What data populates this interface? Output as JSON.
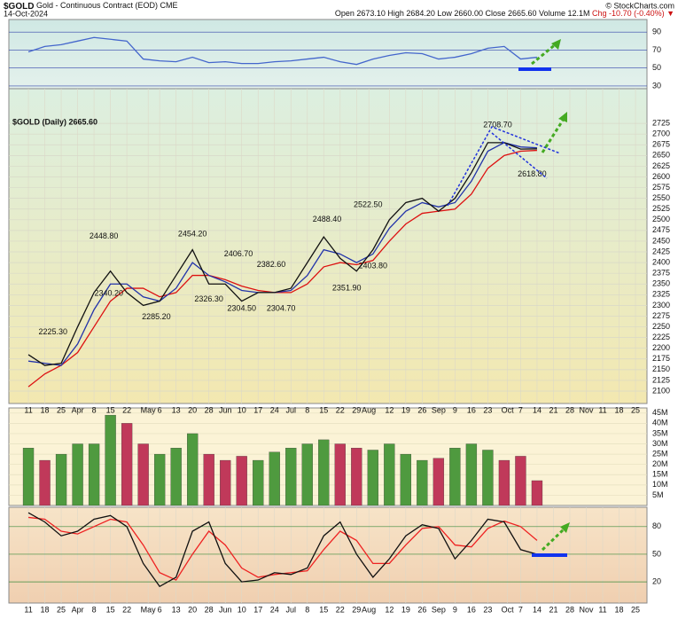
{
  "header": {
    "symbol": "$GOLD",
    "name": "Gold - Continuous Contract (EOD)",
    "exchange": "CME",
    "date": "14-Oct-2024",
    "copyright": "© StockCharts.com",
    "quote": "Open 2673.10 High 2684.20 Low 2660.00 Close 2665.60 Volume 12.1M",
    "change": "Chg -10.70 (-0.40%) ▼"
  },
  "chart_data": [
    {
      "type": "line",
      "x": [
        0,
        1,
        2,
        3,
        4,
        5,
        6,
        7,
        8,
        9,
        10,
        11,
        12,
        13,
        14,
        15,
        16,
        17,
        18,
        19,
        20,
        21,
        22,
        23,
        24,
        25,
        26,
        27,
        28,
        29,
        30,
        31
      ],
      "xlim": [
        -1.19,
        37.7
      ],
      "ylim": [
        27,
        104
      ],
      "yticks": [
        30,
        50,
        70,
        90
      ],
      "grid_color": "#3344aa",
      "series": [
        {
          "color": "#4466cc",
          "values": [
            68,
            74,
            76,
            80,
            84,
            82,
            80,
            60,
            58,
            57,
            62,
            56,
            57,
            55,
            55,
            57,
            58,
            60,
            62,
            57,
            54,
            60,
            64,
            67,
            66,
            60,
            62,
            66,
            72,
            74,
            60,
            62
          ]
        }
      ]
    },
    {
      "type": "line",
      "title": "$GOLD (Daily) 2665.60",
      "x": [
        0,
        1,
        2,
        3,
        4,
        5,
        6,
        7,
        8,
        9,
        10,
        11,
        12,
        13,
        14,
        15,
        16,
        17,
        18,
        19,
        20,
        21,
        22,
        23,
        24,
        25,
        26,
        27,
        28,
        29,
        30,
        31
      ],
      "xlim": [
        -1.19,
        37.7
      ],
      "ylim": [
        2071,
        2806
      ],
      "grid_color": "#d8d8c8",
      "yticks": [
        2100,
        2125,
        2150,
        2175,
        2200,
        2225,
        2250,
        2275,
        2300,
        2325,
        2350,
        2375,
        2400,
        2425,
        2450,
        2475,
        2500,
        2525,
        2550,
        2575,
        2600,
        2625,
        2650,
        2675,
        2700,
        2725
      ],
      "xticks": [
        {
          "value": 0,
          "label": "11"
        },
        {
          "value": 1,
          "label": "18"
        },
        {
          "value": 2,
          "label": "25"
        },
        {
          "value": 3,
          "label": "Apr"
        },
        {
          "value": 4,
          "label": "8"
        },
        {
          "value": 5,
          "label": "15"
        },
        {
          "value": 6,
          "label": "22"
        },
        {
          "value": 7.3,
          "label": "May"
        },
        {
          "value": 8,
          "label": "6"
        },
        {
          "value": 9,
          "label": "13"
        },
        {
          "value": 10,
          "label": "20"
        },
        {
          "value": 11,
          "label": "28"
        },
        {
          "value": 12,
          "label": "Jun"
        },
        {
          "value": 13,
          "label": "10"
        },
        {
          "value": 14,
          "label": "17"
        },
        {
          "value": 15,
          "label": "24"
        },
        {
          "value": 16,
          "label": "Jul"
        },
        {
          "value": 17,
          "label": "8"
        },
        {
          "value": 18,
          "label": "15"
        },
        {
          "value": 19,
          "label": "22"
        },
        {
          "value": 20,
          "label": "29"
        },
        {
          "value": 20.75,
          "label": "Aug"
        },
        {
          "value": 22,
          "label": "12"
        },
        {
          "value": 23,
          "label": "19"
        },
        {
          "value": 24,
          "label": "26"
        },
        {
          "value": 25,
          "label": "Sep"
        },
        {
          "value": 26,
          "label": "9"
        },
        {
          "value": 27,
          "label": "16"
        },
        {
          "value": 28,
          "label": "23"
        },
        {
          "value": 29.2,
          "label": "Oct"
        },
        {
          "value": 30,
          "label": "7"
        },
        {
          "value": 31,
          "label": "14"
        },
        {
          "value": 32,
          "label": "21"
        },
        {
          "value": 33,
          "label": "28"
        },
        {
          "value": 34,
          "label": "Nov"
        },
        {
          "value": 35,
          "label": "11"
        },
        {
          "value": 36,
          "label": "18"
        },
        {
          "value": 37,
          "label": "25"
        }
      ],
      "series": [
        {
          "color": "#dd1111",
          "values": [
            2110,
            2140,
            2160,
            2190,
            2250,
            2310,
            2340,
            2340,
            2320,
            2330,
            2370,
            2370,
            2360,
            2345,
            2335,
            2330,
            2330,
            2350,
            2390,
            2400,
            2395,
            2405,
            2450,
            2490,
            2515,
            2520,
            2525,
            2560,
            2620,
            2650,
            2660,
            2662
          ]
        },
        {
          "color": "#2233aa",
          "values": [
            2170,
            2165,
            2160,
            2210,
            2290,
            2350,
            2350,
            2320,
            2310,
            2340,
            2400,
            2370,
            2355,
            2335,
            2330,
            2330,
            2335,
            2370,
            2430,
            2420,
            2400,
            2420,
            2480,
            2520,
            2540,
            2530,
            2540,
            2590,
            2660,
            2680,
            2670,
            2668
          ]
        },
        {
          "color": "#111111",
          "values": [
            2185,
            2160,
            2165,
            2250,
            2330,
            2380,
            2330,
            2300,
            2310,
            2370,
            2430,
            2350,
            2350,
            2310,
            2330,
            2330,
            2340,
            2400,
            2460,
            2410,
            2380,
            2430,
            2500,
            2540,
            2550,
            2520,
            2550,
            2610,
            2680,
            2680,
            2665,
            2665.6
          ]
        }
      ],
      "annotations": [
        {
          "x": 1.5,
          "value": 2225.3,
          "label": "2225.30"
        },
        {
          "x": 4.6,
          "value": 2448.8,
          "label": "2448.80"
        },
        {
          "x": 4.9,
          "value": 2340.2,
          "label": "2340.20"
        },
        {
          "x": 7.8,
          "value": 2285.2,
          "label": "2285.20"
        },
        {
          "x": 10,
          "value": 2454.2,
          "label": "2454.20"
        },
        {
          "x": 11,
          "value": 2326.3,
          "label": "2326.30"
        },
        {
          "x": 12.8,
          "value": 2406.7,
          "label": "2406.70"
        },
        {
          "x": 13,
          "value": 2304.5,
          "label": "2304.50"
        },
        {
          "x": 14.8,
          "value": 2382.6,
          "label": "2382.60"
        },
        {
          "x": 15.4,
          "value": 2304.7,
          "label": "2304.70"
        },
        {
          "x": 18.2,
          "value": 2488.4,
          "label": "2488.40"
        },
        {
          "x": 19.4,
          "value": 2351.9,
          "label": "2351.90"
        },
        {
          "x": 20.7,
          "value": 2522.5,
          "label": "2522.50"
        },
        {
          "x": 21,
          "value": 2403.8,
          "label": "2403.80"
        },
        {
          "x": 28.6,
          "value": 2708.7,
          "label": "2708.70"
        },
        {
          "x": 30.7,
          "value": 2618.8,
          "label": "2618.80"
        }
      ]
    },
    {
      "type": "bar",
      "x": [
        0,
        1,
        2,
        3,
        4,
        5,
        6,
        7,
        8,
        9,
        10,
        11,
        12,
        13,
        14,
        15,
        16,
        17,
        18,
        19,
        20,
        21,
        22,
        23,
        24,
        25,
        26,
        27,
        28,
        29,
        30,
        31
      ],
      "xlim": [
        -1.19,
        37.7
      ],
      "ylim": [
        0,
        47.5
      ],
      "grid_color": "#e6e0c0",
      "yticks": [
        {
          "value": 5,
          "label": "5M"
        },
        {
          "value": 10,
          "label": "10M"
        },
        {
          "value": 15,
          "label": "15M"
        },
        {
          "value": 20,
          "label": "20M"
        },
        {
          "value": 25,
          "label": "25M"
        },
        {
          "value": 30,
          "label": "30M"
        },
        {
          "value": 35,
          "label": "35M"
        },
        {
          "value": 40,
          "label": "40M"
        },
        {
          "value": 45,
          "label": "45M"
        }
      ],
      "series": [
        {
          "values": [
            28,
            22,
            25,
            30,
            30,
            44,
            40,
            30,
            25,
            28,
            35,
            25,
            22,
            24,
            22,
            26,
            28,
            30,
            32,
            30,
            28,
            27,
            30,
            25,
            22,
            23,
            28,
            30,
            27,
            22,
            24,
            12.1
          ],
          "colors": [
            "#4f9a3f",
            "#c0395a",
            "#4f9a3f",
            "#4f9a3f",
            "#4f9a3f",
            "#4f9a3f",
            "#c0395a",
            "#c0395a",
            "#4f9a3f",
            "#4f9a3f",
            "#4f9a3f",
            "#c0395a",
            "#c0395a",
            "#c0395a",
            "#4f9a3f",
            "#4f9a3f",
            "#4f9a3f",
            "#4f9a3f",
            "#4f9a3f",
            "#c0395a",
            "#c0395a",
            "#4f9a3f",
            "#4f9a3f",
            "#4f9a3f",
            "#4f9a3f",
            "#c0395a",
            "#4f9a3f",
            "#4f9a3f",
            "#4f9a3f",
            "#c0395a",
            "#c0395a",
            "#c0395a"
          ]
        }
      ]
    },
    {
      "type": "line",
      "x": [
        0,
        1,
        2,
        3,
        4,
        5,
        6,
        7,
        8,
        9,
        10,
        11,
        12,
        13,
        14,
        15,
        16,
        17,
        18,
        19,
        20,
        21,
        22,
        23,
        24,
        25,
        26,
        27,
        28,
        29,
        30,
        31
      ],
      "xlim": [
        -1.19,
        37.7
      ],
      "ylim": [
        -3,
        101
      ],
      "yticks": [
        20,
        50,
        80
      ],
      "grid_color": "#3a8a3a",
      "xticks": [
        {
          "value": 0,
          "label": "11"
        },
        {
          "value": 1,
          "label": "18"
        },
        {
          "value": 2,
          "label": "25"
        },
        {
          "value": 3,
          "label": "Apr"
        },
        {
          "value": 4,
          "label": "8"
        },
        {
          "value": 5,
          "label": "15"
        },
        {
          "value": 6,
          "label": "22"
        },
        {
          "value": 7.3,
          "label": "May"
        },
        {
          "value": 8,
          "label": "6"
        },
        {
          "value": 9,
          "label": "13"
        },
        {
          "value": 10,
          "label": "20"
        },
        {
          "value": 11,
          "label": "28"
        },
        {
          "value": 12,
          "label": "Jun"
        },
        {
          "value": 13,
          "label": "10"
        },
        {
          "value": 14,
          "label": "17"
        },
        {
          "value": 15,
          "label": "24"
        },
        {
          "value": 16,
          "label": "Jul"
        },
        {
          "value": 17,
          "label": "8"
        },
        {
          "value": 18,
          "label": "15"
        },
        {
          "value": 19,
          "label": "22"
        },
        {
          "value": 20,
          "label": "29"
        },
        {
          "value": 20.75,
          "label": "Aug"
        },
        {
          "value": 22,
          "label": "12"
        },
        {
          "value": 23,
          "label": "19"
        },
        {
          "value": 24,
          "label": "26"
        },
        {
          "value": 25,
          "label": "Sep"
        },
        {
          "value": 26,
          "label": "9"
        },
        {
          "value": 27,
          "label": "16"
        },
        {
          "value": 28,
          "label": "23"
        },
        {
          "value": 29.2,
          "label": "Oct"
        },
        {
          "value": 30,
          "label": "7"
        },
        {
          "value": 31,
          "label": "14"
        },
        {
          "value": 32,
          "label": "21"
        },
        {
          "value": 33,
          "label": "28"
        },
        {
          "value": 34,
          "label": "Nov"
        },
        {
          "value": 35,
          "label": "11"
        },
        {
          "value": 36,
          "label": "18"
        },
        {
          "value": 37,
          "label": "25"
        }
      ],
      "series": [
        {
          "color": "#ee2222",
          "values": [
            90,
            88,
            75,
            72,
            80,
            88,
            85,
            60,
            30,
            22,
            50,
            75,
            60,
            35,
            25,
            28,
            30,
            32,
            55,
            75,
            65,
            40,
            40,
            60,
            78,
            80,
            60,
            58,
            78,
            86,
            80,
            65
          ]
        },
        {
          "color": "#111111",
          "values": [
            95,
            85,
            70,
            75,
            88,
            92,
            80,
            40,
            15,
            25,
            75,
            85,
            40,
            20,
            22,
            30,
            28,
            35,
            70,
            85,
            50,
            25,
            45,
            70,
            82,
            78,
            45,
            65,
            88,
            85,
            55,
            50
          ]
        }
      ]
    }
  ]
}
